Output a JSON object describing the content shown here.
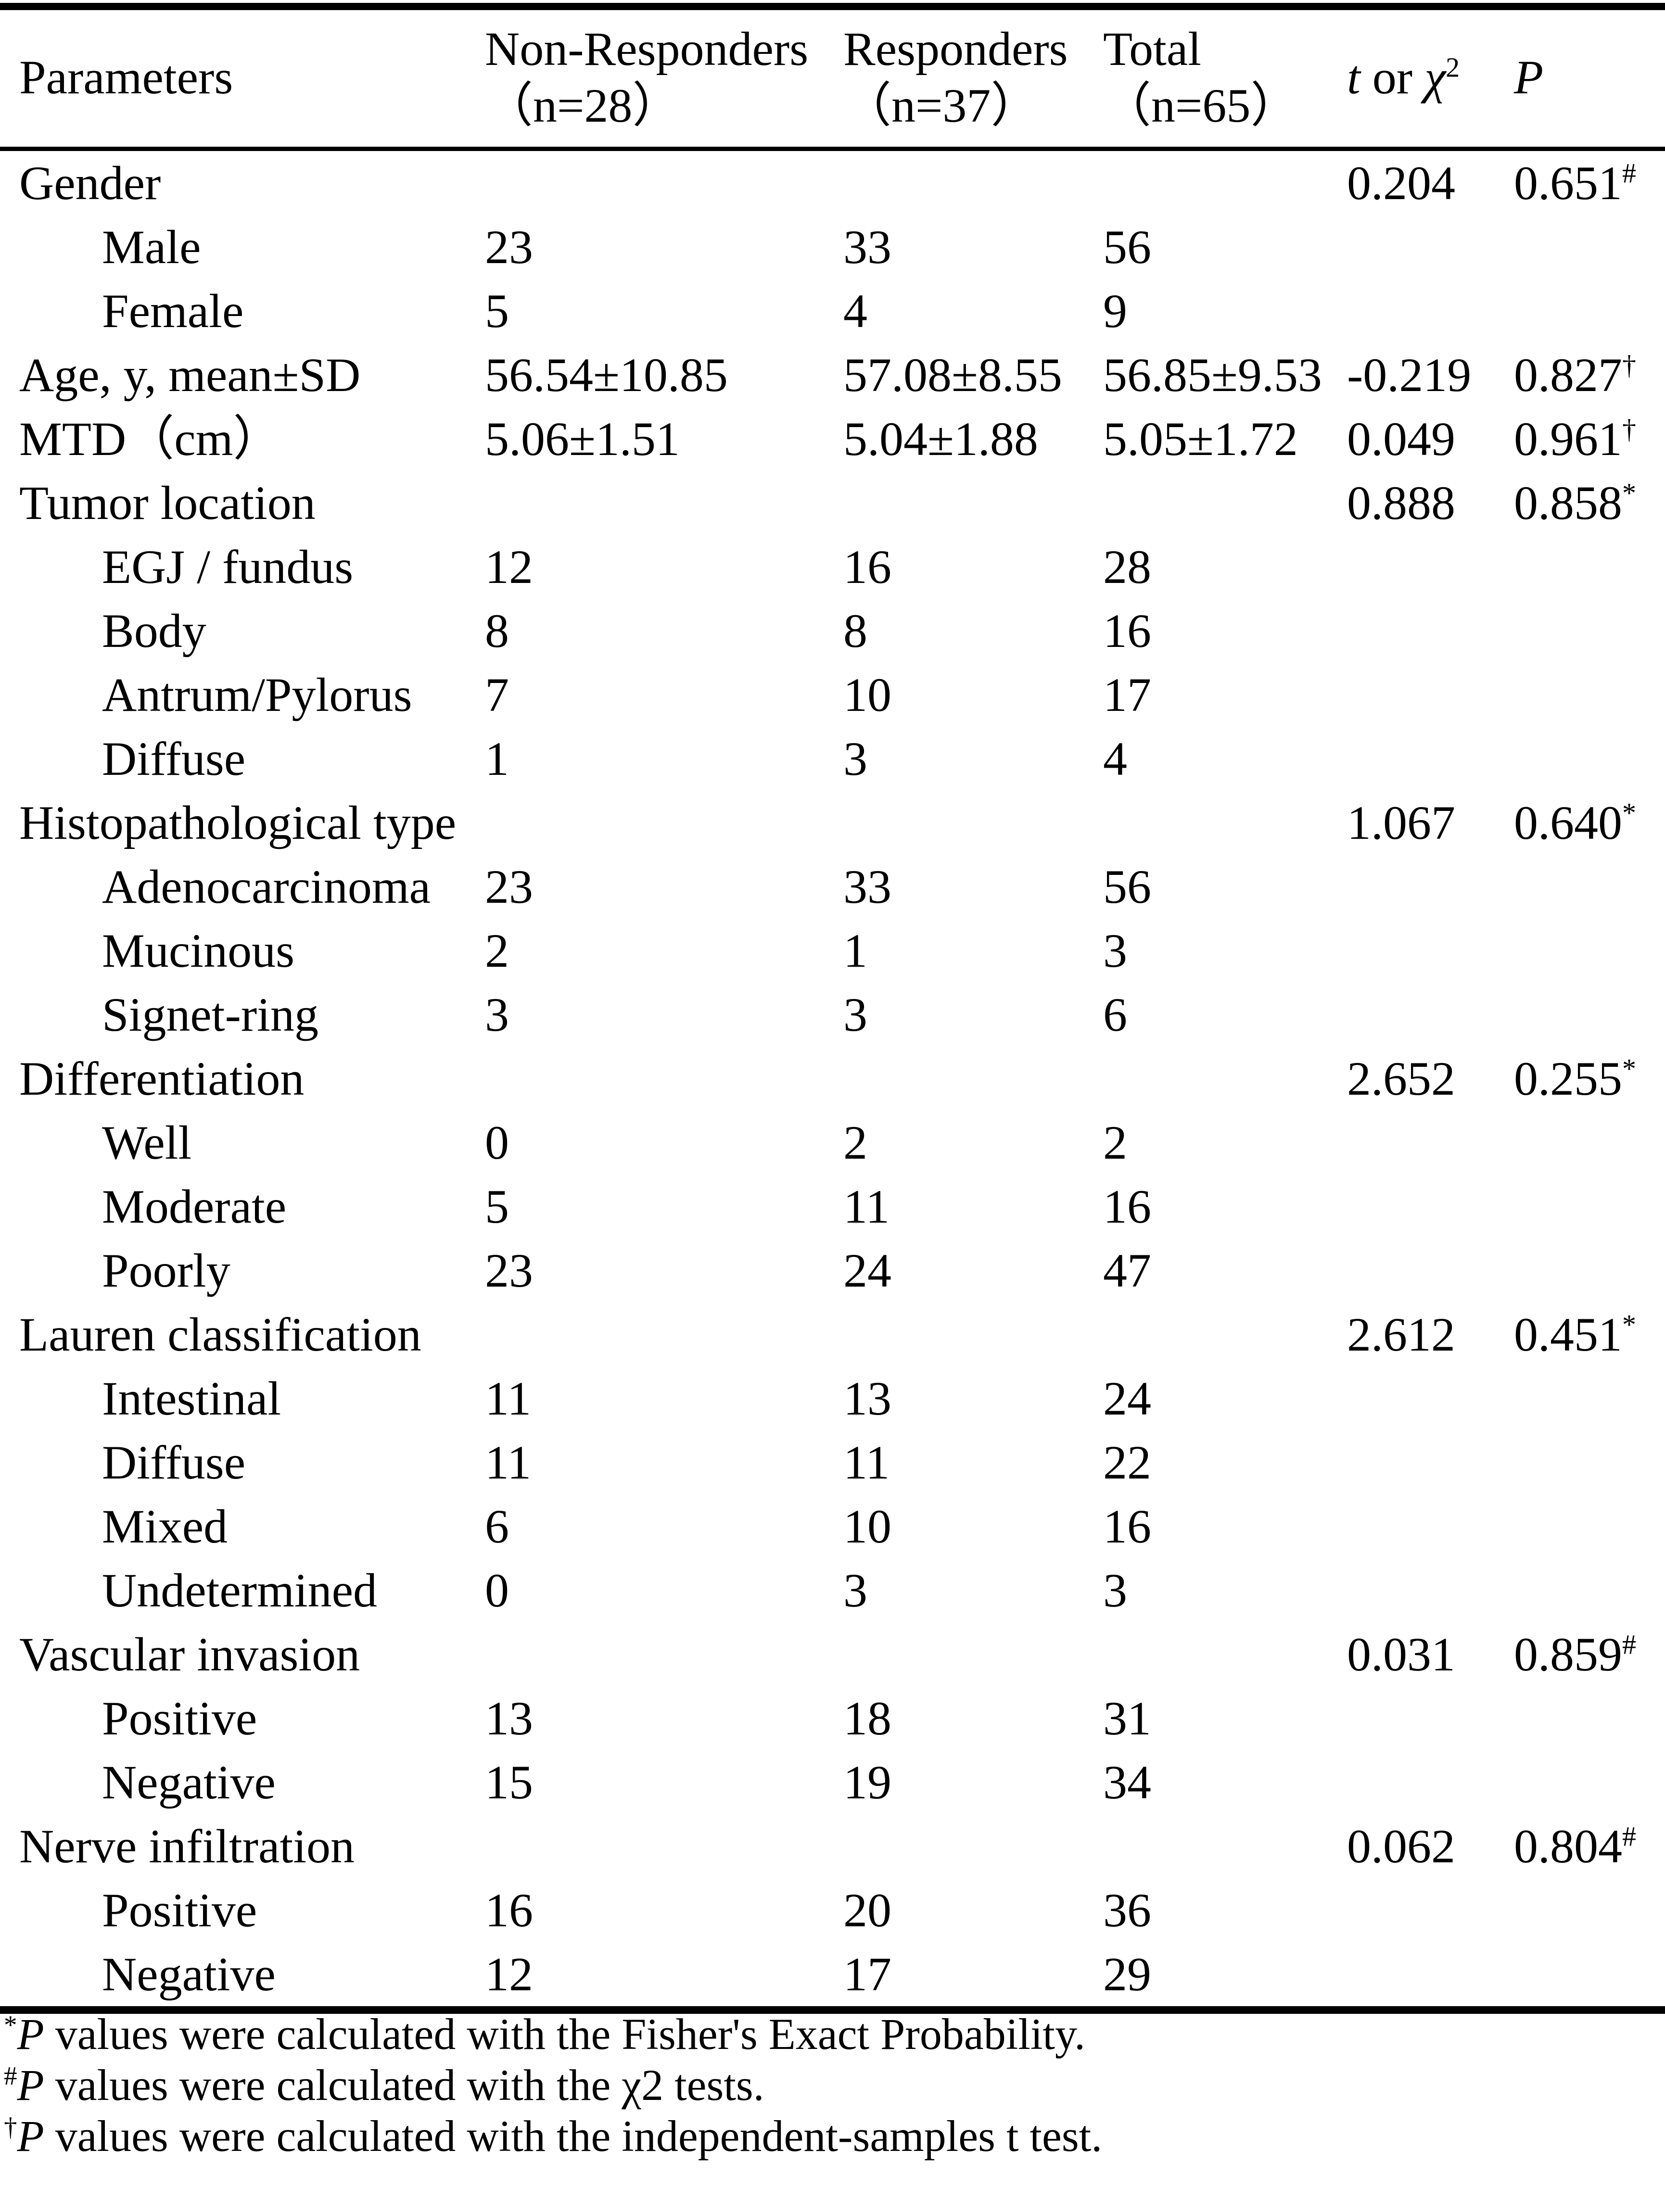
{
  "page": {
    "background_color": "#ffffff",
    "text_color": "#000000"
  },
  "table": {
    "header": {
      "parameters": "Parameters",
      "group1_line1": "Non-Responders",
      "group1_line2": "（n=28）",
      "group2_line1": "Responders",
      "group2_line2": "（n=37）",
      "group3_line1": "Total",
      "group3_line2": "（n=65）",
      "stat_t": "t",
      "stat_mid": " or ",
      "stat_chi": "χ",
      "stat_chi_sup": "2",
      "p": "P"
    },
    "rows": [
      {
        "label": "Gender",
        "indent": false,
        "non_responders": "",
        "responders": "",
        "total": "",
        "t": "0.204",
        "p": "0.651",
        "p_sup": "#"
      },
      {
        "label": "Male",
        "indent": true,
        "non_responders": "23",
        "responders": "33",
        "total": "56",
        "t": "",
        "p": "",
        "p_sup": ""
      },
      {
        "label": "Female",
        "indent": true,
        "non_responders": "5",
        "responders": "4",
        "total": "9",
        "t": "",
        "p": "",
        "p_sup": ""
      },
      {
        "label": "Age, y, mean±SD",
        "indent": false,
        "non_responders": "56.54±10.85",
        "responders": "57.08±8.55",
        "total": "56.85±9.53",
        "t": "-0.219",
        "p": "0.827",
        "p_sup": "†"
      },
      {
        "label": "MTD（cm）",
        "indent": false,
        "non_responders": "5.06±1.51",
        "responders": "5.04±1.88",
        "total": "5.05±1.72",
        "t": "0.049",
        "p": "0.961",
        "p_sup": "†"
      },
      {
        "label": "Tumor location",
        "indent": false,
        "non_responders": "",
        "responders": "",
        "total": "",
        "t": "0.888",
        "p": "0.858",
        "p_sup": "*"
      },
      {
        "label": "EGJ / fundus",
        "indent": true,
        "non_responders": "12",
        "responders": "16",
        "total": "28",
        "t": "",
        "p": "",
        "p_sup": ""
      },
      {
        "label": "Body",
        "indent": true,
        "non_responders": "8",
        "responders": "8",
        "total": "16",
        "t": "",
        "p": "",
        "p_sup": ""
      },
      {
        "label": "Antrum/Pylorus",
        "indent": true,
        "non_responders": "7",
        "responders": "10",
        "total": "17",
        "t": "",
        "p": "",
        "p_sup": ""
      },
      {
        "label": "Diffuse",
        "indent": true,
        "non_responders": "1",
        "responders": "3",
        "total": "4",
        "t": "",
        "p": "",
        "p_sup": ""
      },
      {
        "label": "Histopathological type",
        "indent": false,
        "non_responders": "",
        "responders": "",
        "total": "",
        "t": "1.067",
        "p": "0.640",
        "p_sup": "*"
      },
      {
        "label": "Adenocarcinoma",
        "indent": true,
        "non_responders": "23",
        "responders": "33",
        "total": "56",
        "t": "",
        "p": "",
        "p_sup": ""
      },
      {
        "label": "Mucinous",
        "indent": true,
        "non_responders": "2",
        "responders": "1",
        "total": "3",
        "t": "",
        "p": "",
        "p_sup": ""
      },
      {
        "label": "Signet-ring",
        "indent": true,
        "non_responders": "3",
        "responders": "3",
        "total": "6",
        "t": "",
        "p": "",
        "p_sup": ""
      },
      {
        "label": "Differentiation",
        "indent": false,
        "non_responders": "",
        "responders": "",
        "total": "",
        "t": "2.652",
        "p": "0.255",
        "p_sup": "*"
      },
      {
        "label": "Well",
        "indent": true,
        "non_responders": "0",
        "responders": "2",
        "total": "2",
        "t": "",
        "p": "",
        "p_sup": ""
      },
      {
        "label": "Moderate",
        "indent": true,
        "non_responders": "5",
        "responders": "11",
        "total": "16",
        "t": "",
        "p": "",
        "p_sup": ""
      },
      {
        "label": "Poorly",
        "indent": true,
        "non_responders": "23",
        "responders": "24",
        "total": "47",
        "t": "",
        "p": "",
        "p_sup": ""
      },
      {
        "label": "Lauren classification",
        "indent": false,
        "non_responders": "",
        "responders": "",
        "total": "",
        "t": "2.612",
        "p": "0.451",
        "p_sup": "*"
      },
      {
        "label": "Intestinal",
        "indent": true,
        "non_responders": "11",
        "responders": "13",
        "total": "24",
        "t": "",
        "p": "",
        "p_sup": ""
      },
      {
        "label": "Diffuse",
        "indent": true,
        "non_responders": "11",
        "responders": "11",
        "total": "22",
        "t": "",
        "p": "",
        "p_sup": ""
      },
      {
        "label": "Mixed",
        "indent": true,
        "non_responders": "6",
        "responders": "10",
        "total": "16",
        "t": "",
        "p": "",
        "p_sup": ""
      },
      {
        "label": "Undetermined",
        "indent": true,
        "non_responders": "0",
        "responders": "3",
        "total": "3",
        "t": "",
        "p": "",
        "p_sup": ""
      },
      {
        "label": "Vascular invasion",
        "indent": false,
        "non_responders": "",
        "responders": "",
        "total": "",
        "t": "0.031",
        "p": "0.859",
        "p_sup": "#"
      },
      {
        "label": "Positive",
        "indent": true,
        "non_responders": "13",
        "responders": "18",
        "total": "31",
        "t": "",
        "p": "",
        "p_sup": ""
      },
      {
        "label": "Negative",
        "indent": true,
        "non_responders": "15",
        "responders": "19",
        "total": "34",
        "t": "",
        "p": "",
        "p_sup": ""
      },
      {
        "label": "Nerve infiltration",
        "indent": false,
        "non_responders": "",
        "responders": "",
        "total": "",
        "t": "0.062",
        "p": "0.804",
        "p_sup": "#"
      },
      {
        "label": "Positive",
        "indent": true,
        "non_responders": "16",
        "responders": "20",
        "total": "36",
        "t": "",
        "p": "",
        "p_sup": ""
      },
      {
        "label": "Negative",
        "indent": true,
        "non_responders": "12",
        "responders": "17",
        "total": "29",
        "t": "",
        "p": "",
        "p_sup": ""
      }
    ]
  },
  "footnotes": [
    {
      "marker": "*",
      "p_symbol": "P",
      "text": " values were calculated with the Fisher's Exact Probability."
    },
    {
      "marker": "#",
      "p_symbol": "P",
      "text": " values were calculated with the χ2 tests."
    },
    {
      "marker": "†",
      "p_symbol": "P",
      "text": " values were calculated with the independent-samples t test."
    }
  ]
}
